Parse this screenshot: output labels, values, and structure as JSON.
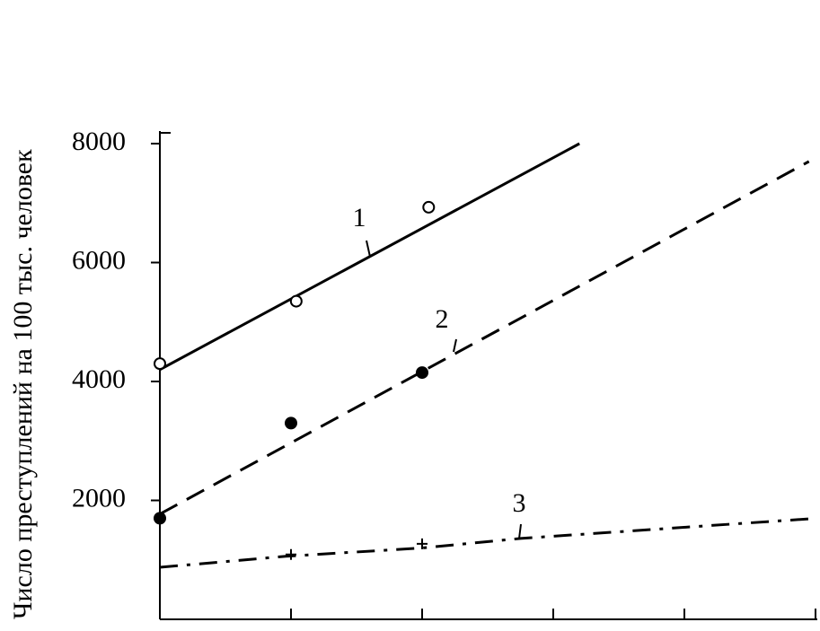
{
  "chart_data": {
    "type": "line",
    "y_label": "Число преступлений на 100 тыс. человек",
    "xlim": [
      0,
      5
    ],
    "xticks": [
      0,
      1,
      2,
      3,
      4,
      5
    ],
    "ylim": [
      0,
      8000
    ],
    "yticks": [
      2000,
      4000,
      6000,
      8000
    ],
    "series": [
      {
        "name": "1",
        "color": "#000000",
        "dash": "solid",
        "x": [
          0,
          3.2
        ],
        "values": [
          4200,
          8000
        ],
        "points": {
          "marker": "open-circle",
          "x": [
            0,
            1.04,
            2.05
          ],
          "values": [
            4300,
            5350,
            6930
          ]
        }
      },
      {
        "name": "2",
        "color": "#000000",
        "dash": "dashed",
        "x": [
          0,
          4.95
        ],
        "values": [
          1770,
          7700
        ],
        "points": {
          "marker": "filled-circle",
          "x": [
            0,
            1,
            2
          ],
          "values": [
            1700,
            3300,
            4150
          ]
        }
      },
      {
        "name": "3",
        "color": "#000000",
        "dash": "dash-dot",
        "x": [
          0,
          0.96,
          2,
          2.75,
          4.95
        ],
        "values": [
          875,
          1060,
          1200,
          1360,
          1690
        ],
        "points": {
          "marker": "plus",
          "x": [
            1,
            2
          ],
          "values": [
            1090,
            1270
          ]
        }
      }
    ]
  }
}
